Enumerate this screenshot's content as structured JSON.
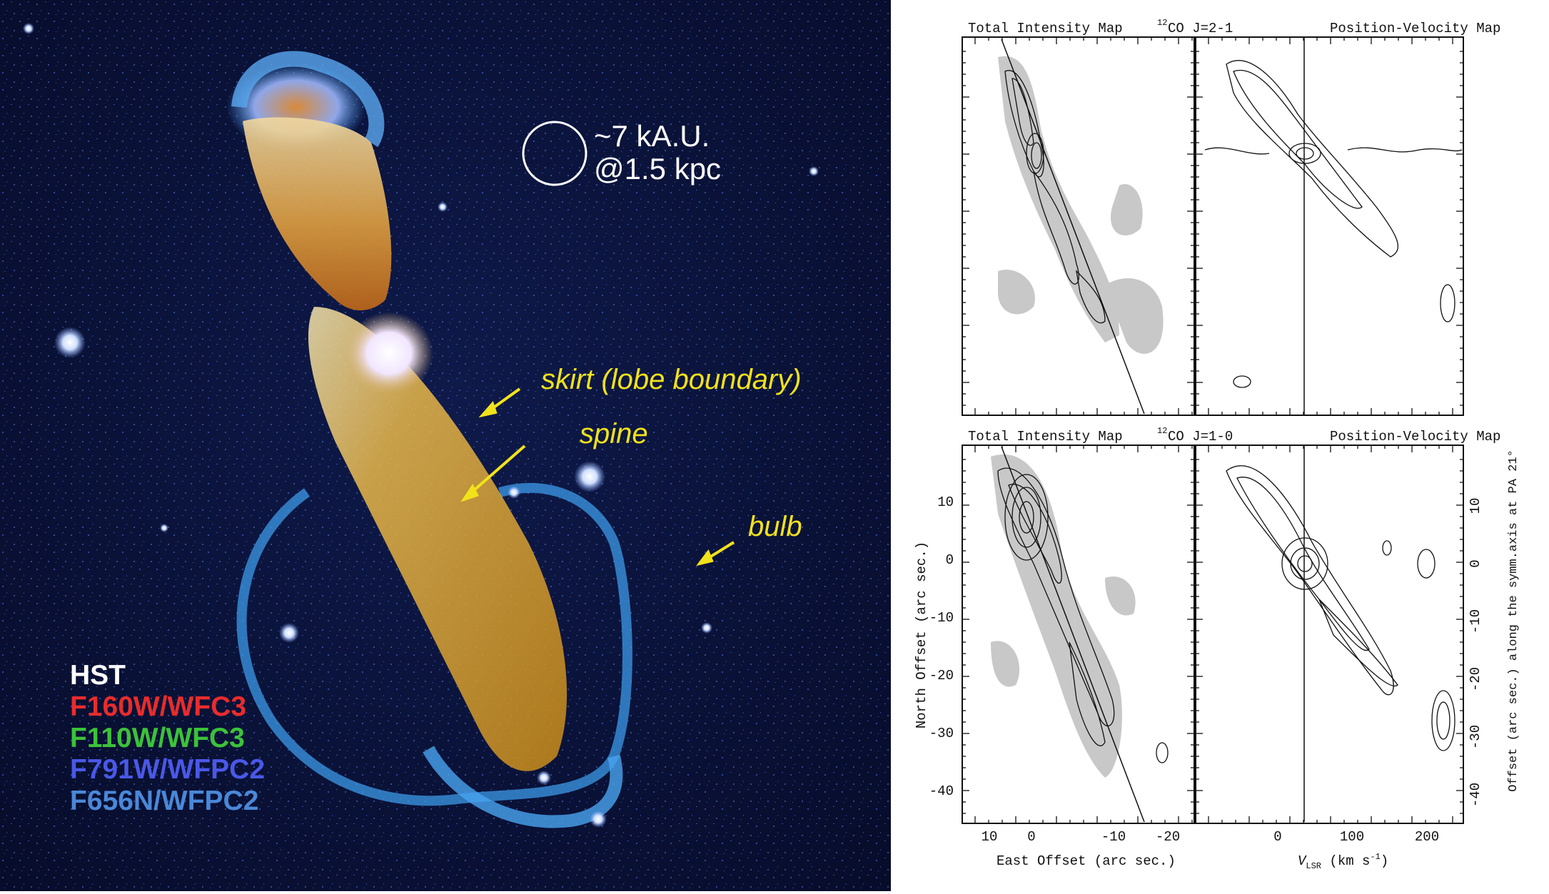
{
  "hst_image": {
    "scale_bar": {
      "line1": "~7 kA.U.",
      "line2": "@1.5 kpc"
    },
    "annotations": {
      "skirt": "skirt (lobe boundary)",
      "spine": "spine",
      "bulb": "bulb"
    },
    "legend": [
      {
        "text": "HST",
        "color": "#ffffff"
      },
      {
        "text": "F160W/WFC3",
        "color": "#e82c2c"
      },
      {
        "text": "F110W/WFC3",
        "color": "#3cc23a"
      },
      {
        "text": "F791W/WFPC2",
        "color": "#4a58e8"
      },
      {
        "text": "F656N/WFPC2",
        "color": "#4a88d8"
      }
    ]
  },
  "co_maps": {
    "top": {
      "left_title": "Total Intensity Map",
      "center_title_sup": "12",
      "center_title": "CO J=2-1",
      "right_title": "Position-Velocity Map"
    },
    "bottom": {
      "left_title": "Total Intensity Map",
      "center_title_sup": "12",
      "center_title": "CO J=1-0",
      "right_title": "Position-Velocity Map"
    },
    "y_axis_left_label": "North Offset (arc sec.)",
    "y_axis_right_label": "Offset (arc sec.) along the symm.axis at PA 21°",
    "x_axis_left_label": "East Offset (arc sec.)",
    "x_axis_right_label_prefix": "V",
    "x_axis_right_label_sub": "LSR",
    "x_axis_right_label_suffix": " (km s",
    "x_axis_right_label_exp": "-1",
    "x_axis_right_label_end": ")",
    "y_ticks": [
      "10",
      "0",
      "-10",
      "-20",
      "-30",
      "-40"
    ],
    "x_ticks_left": [
      "10",
      "0",
      "-10",
      "-20"
    ],
    "x_ticks_right": [
      "0",
      "100",
      "200"
    ]
  }
}
